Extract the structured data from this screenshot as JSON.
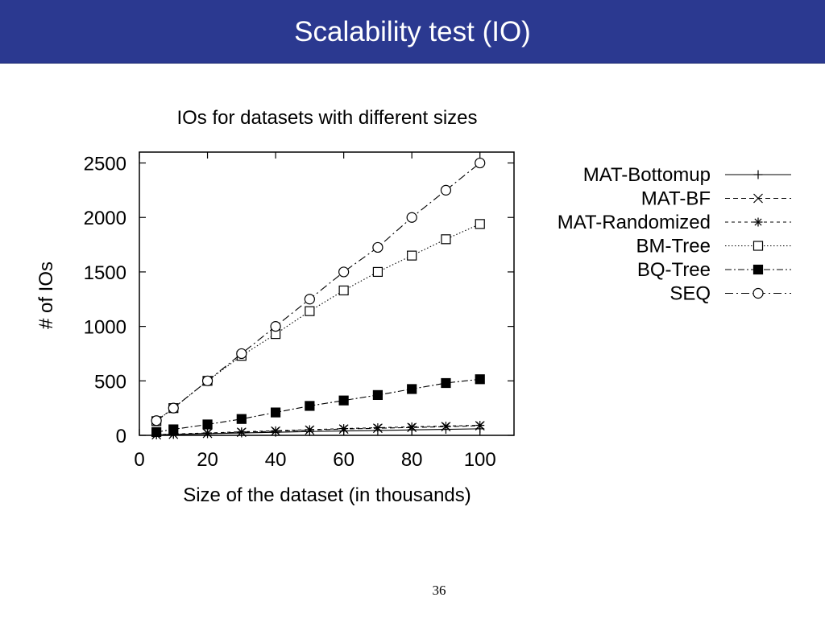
{
  "slide": {
    "title": "Scalability test (IO)",
    "page_number": "36",
    "header_color": "#2b3990"
  },
  "chart_data": {
    "type": "line",
    "title": "IOs for datasets with different sizes",
    "xlabel": "Size of the dataset (in thousands)",
    "ylabel": "# of IOs",
    "xlim": [
      0,
      110
    ],
    "ylim": [
      0,
      2600
    ],
    "xticks": [
      0,
      20,
      40,
      60,
      80,
      100
    ],
    "yticks": [
      0,
      500,
      1000,
      1500,
      2000,
      2500
    ],
    "grid": false,
    "legend_position": "outside-right",
    "series": [
      {
        "name": "MAT-Bottomup",
        "marker": "plus",
        "dash": "solid",
        "x": [
          5,
          10,
          20,
          30,
          40,
          50,
          60,
          70,
          80,
          90,
          100
        ],
        "y": [
          5,
          8,
          15,
          22,
          28,
          35,
          40,
          45,
          50,
          55,
          60
        ]
      },
      {
        "name": "MAT-BF",
        "marker": "cross",
        "dash": "dashed",
        "x": [
          5,
          10,
          20,
          30,
          40,
          50,
          60,
          70,
          80,
          90,
          100
        ],
        "y": [
          5,
          10,
          18,
          28,
          38,
          48,
          58,
          65,
          72,
          80,
          88
        ]
      },
      {
        "name": "MAT-Randomized",
        "marker": "star",
        "dash": "short-dash",
        "x": [
          5,
          10,
          20,
          30,
          40,
          50,
          60,
          70,
          80,
          90,
          100
        ],
        "y": [
          6,
          12,
          22,
          32,
          42,
          52,
          62,
          70,
          78,
          85,
          92
        ]
      },
      {
        "name": "BM-Tree",
        "marker": "square-open",
        "dash": "dotted",
        "x": [
          5,
          10,
          20,
          30,
          40,
          50,
          60,
          70,
          80,
          90,
          100
        ],
        "y": [
          130,
          250,
          500,
          730,
          930,
          1140,
          1330,
          1500,
          1650,
          1800,
          1940
        ]
      },
      {
        "name": "BQ-Tree",
        "marker": "square-filled",
        "dash": "dash-dot",
        "x": [
          5,
          10,
          20,
          30,
          40,
          50,
          60,
          70,
          80,
          90,
          100
        ],
        "y": [
          30,
          55,
          100,
          150,
          210,
          270,
          320,
          370,
          425,
          480,
          515
        ]
      },
      {
        "name": "SEQ",
        "marker": "circle-open",
        "dash": "dash-dot-long",
        "x": [
          5,
          10,
          20,
          30,
          40,
          50,
          60,
          70,
          80,
          90,
          100
        ],
        "y": [
          135,
          250,
          500,
          750,
          1000,
          1250,
          1500,
          1725,
          2000,
          2250,
          2500
        ]
      }
    ]
  }
}
